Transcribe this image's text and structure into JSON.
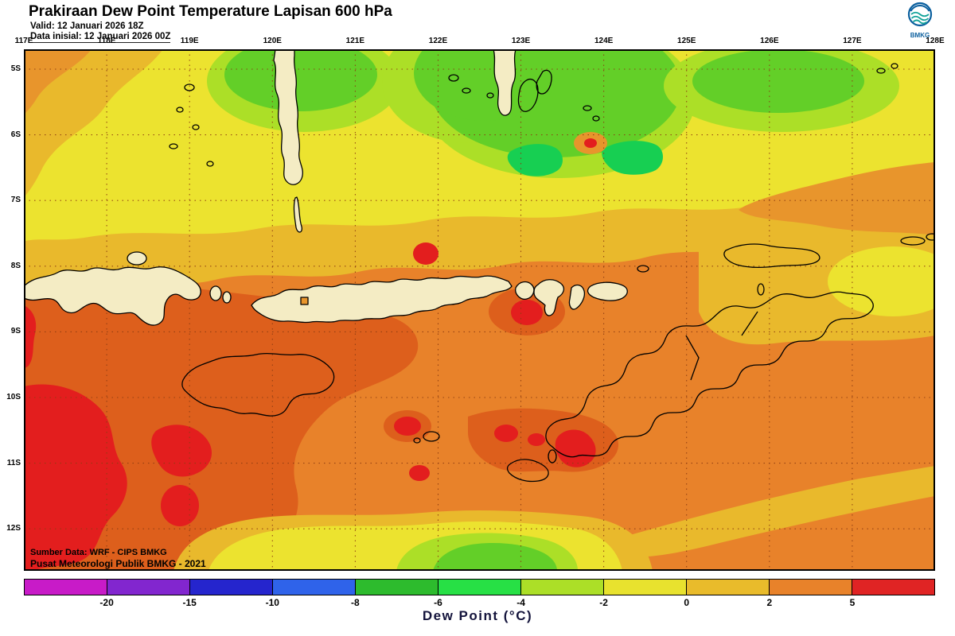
{
  "header": {
    "title": "Prakiraan Dew Point Temperature Lapisan 600 hPa",
    "valid_line": "Valid: 12 Januari 2026 18Z",
    "init_line": "Data inisial: 12 Januari 2026 00Z",
    "logo_text": "BMKG"
  },
  "map": {
    "lon_labels": [
      "117E",
      "118E",
      "119E",
      "120E",
      "121E",
      "122E",
      "123E",
      "124E",
      "125E",
      "126E",
      "127E",
      "128E"
    ],
    "lat_labels": [
      "5S",
      "6S",
      "7S",
      "8S",
      "9S",
      "10S",
      "11S",
      "12S"
    ],
    "source_line1": "Sumber Data: WRF - CIPS BMKG",
    "source_line2": "Pusat Meteorologi Publik BMKG - 2021"
  },
  "colorbar": {
    "segments": [
      "#c81bc8",
      "#8226cf",
      "#2525cd",
      "#2f63ea",
      "#2dbb2d",
      "#27e045",
      "#acdf27",
      "#e8e22e",
      "#e9bb2b",
      "#e8822a",
      "#e02424"
    ],
    "labels": [
      "-20",
      "-15",
      "-10",
      "-8",
      "-6",
      "-4",
      "-2",
      "0",
      "2",
      "5"
    ],
    "caption": "Dew Point (°C)"
  },
  "chart_data": {
    "type": "heatmap",
    "title": "Prakiraan Dew Point Temperature Lapisan 600 hPa",
    "variable": "Dew Point (°C)",
    "level": "600 hPa",
    "valid_time": "12 Januari 2026 18Z",
    "init_time": "12 Januari 2026 00Z",
    "x_ticks": [
      "117E",
      "118E",
      "119E",
      "120E",
      "121E",
      "122E",
      "123E",
      "124E",
      "125E",
      "126E",
      "127E",
      "128E"
    ],
    "y_ticks": [
      "5S",
      "6S",
      "7S",
      "8S",
      "9S",
      "10S",
      "11S",
      "12S"
    ],
    "color_scale_boundaries": [
      -20,
      -15,
      -10,
      -8,
      -6,
      -4,
      -2,
      0,
      2,
      5
    ],
    "color_scale_colors": [
      "#c81bc8",
      "#8226cf",
      "#2525cd",
      "#2f63ea",
      "#2dbb2d",
      "#27e045",
      "#acdf27",
      "#e8e22e",
      "#e9bb2b",
      "#e8822a",
      "#e02424"
    ],
    "legend_position": "bottom"
  }
}
